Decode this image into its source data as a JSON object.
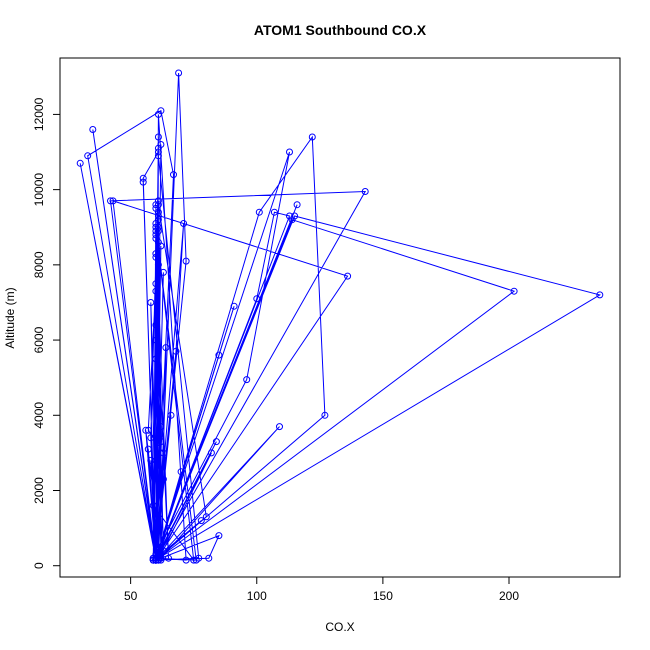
{
  "chart_data": {
    "type": "line",
    "title": "ATOM1 Southbound CO.X",
    "xlabel": "CO.X",
    "ylabel": "Altitude (m)",
    "xlim": [
      22,
      244
    ],
    "ylim": [
      -300,
      13500
    ],
    "xticks": [
      50,
      100,
      150,
      200
    ],
    "yticks": [
      0,
      2000,
      4000,
      6000,
      8000,
      10000,
      12000
    ],
    "grid": false,
    "legend": "none",
    "series_color": "#0000ff",
    "marker": "open-circle",
    "series": [
      {
        "x": [
          60,
          61,
          59,
          62,
          60,
          63,
          60,
          61,
          59,
          60,
          62,
          64,
          60,
          58,
          61,
          60,
          59,
          60,
          63,
          60,
          61,
          60,
          59,
          60,
          62,
          60,
          65,
          60,
          61,
          60,
          59,
          60,
          61,
          69,
          72,
          60,
          61,
          59,
          60,
          57,
          63,
          60,
          58,
          60,
          61,
          60,
          62,
          60,
          59,
          75,
          60,
          76,
          60,
          61,
          62,
          60,
          55,
          60,
          61,
          60,
          30,
          60,
          61,
          59,
          61,
          60,
          58,
          60,
          67,
          62,
          33,
          60,
          61,
          60,
          68,
          71,
          60,
          35,
          60,
          61,
          60,
          57,
          60,
          61,
          60,
          42,
          143,
          60,
          60,
          82,
          61,
          60,
          84,
          60,
          100,
          107,
          113,
          60,
          60,
          61,
          72,
          60,
          62,
          60,
          85,
          60,
          59,
          96,
          113,
          60,
          61,
          62,
          60,
          80,
          61,
          60,
          109,
          62,
          56,
          60,
          202,
          114,
          60,
          61,
          60,
          81,
          85,
          60,
          60,
          91,
          60,
          116,
          60,
          78,
          60,
          66,
          60,
          136,
          43,
          60,
          101,
          122,
          127,
          60,
          60,
          61,
          55,
          60,
          70,
          61,
          236,
          115,
          60,
          63,
          60,
          77,
          61,
          60
        ],
        "y": [
          150,
          9000,
          150,
          8500,
          300,
          7800,
          200,
          9200,
          150,
          8900,
          200,
          5800,
          150,
          7000,
          300,
          9500,
          200,
          8300,
          400,
          6400,
          200,
          9600,
          150,
          8700,
          300,
          7300,
          200,
          9100,
          150,
          8800,
          200,
          6000,
          150,
          13100,
          8100,
          200,
          9400,
          150,
          7500,
          3600,
          3000,
          200,
          3400,
          8200,
          200,
          5500,
          3300,
          200,
          1600,
          150,
          9000,
          150,
          200,
          8000,
          3700,
          150,
          10200,
          200,
          9300,
          150,
          10700,
          200,
          8600,
          150,
          11400,
          200,
          2800,
          150,
          10400,
          12100,
          10900,
          150,
          11100,
          200,
          5700,
          9100,
          150,
          11600,
          200,
          8900,
          150,
          3100,
          200,
          9700,
          150,
          9700,
          9950,
          150,
          200,
          3000,
          150,
          200,
          3300,
          150,
          7100,
          9400,
          9300,
          150,
          200,
          12000,
          150,
          200,
          11200,
          150,
          5600,
          150,
          200,
          4950,
          11000,
          200,
          9000,
          150,
          200,
          1300,
          9600,
          150,
          3700,
          200,
          3600,
          150,
          7300,
          9200,
          150,
          200,
          150,
          200,
          800,
          150,
          200,
          6900,
          150,
          9600,
          150,
          1200,
          200,
          4000,
          150,
          7700,
          9700,
          150,
          9400,
          11400,
          4000,
          150,
          200,
          11000,
          10300,
          150,
          2500,
          200,
          7200,
          9300,
          150,
          2300,
          150,
          200,
          10900,
          150
        ]
      }
    ]
  }
}
